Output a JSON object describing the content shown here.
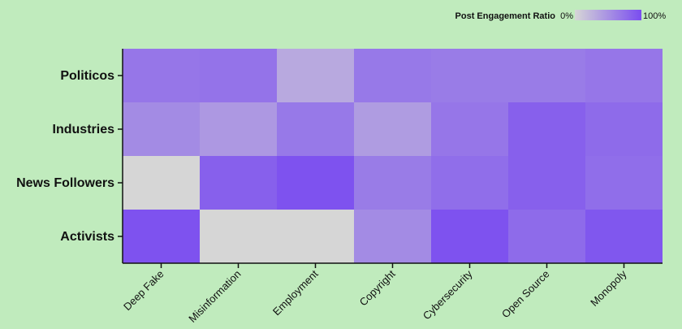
{
  "chart_data": {
    "type": "heatmap",
    "legend": {
      "title": "Post Engagement Ratio",
      "min_label": "0%",
      "max_label": "100%",
      "low_color": "#d6d6d6",
      "high_color": "#7a4df0",
      "placement": "top-right"
    },
    "rows": [
      "Politicos",
      "Industries",
      "News Followers",
      "Activists"
    ],
    "columns": [
      "Deep Fake",
      "Misinformation",
      "Employment",
      "Copyright",
      "Cybersecurity",
      "Open Source",
      "Monopoly"
    ],
    "values": [
      [
        0.7,
        0.72,
        0.33,
        0.68,
        0.66,
        0.66,
        0.7
      ],
      [
        0.55,
        0.45,
        0.68,
        0.42,
        0.7,
        0.86,
        0.78
      ],
      [
        0.0,
        0.86,
        0.96,
        0.66,
        0.76,
        0.86,
        0.76
      ],
      [
        0.96,
        0.0,
        0.0,
        0.55,
        0.96,
        0.78,
        0.93
      ]
    ],
    "grid": false
  }
}
